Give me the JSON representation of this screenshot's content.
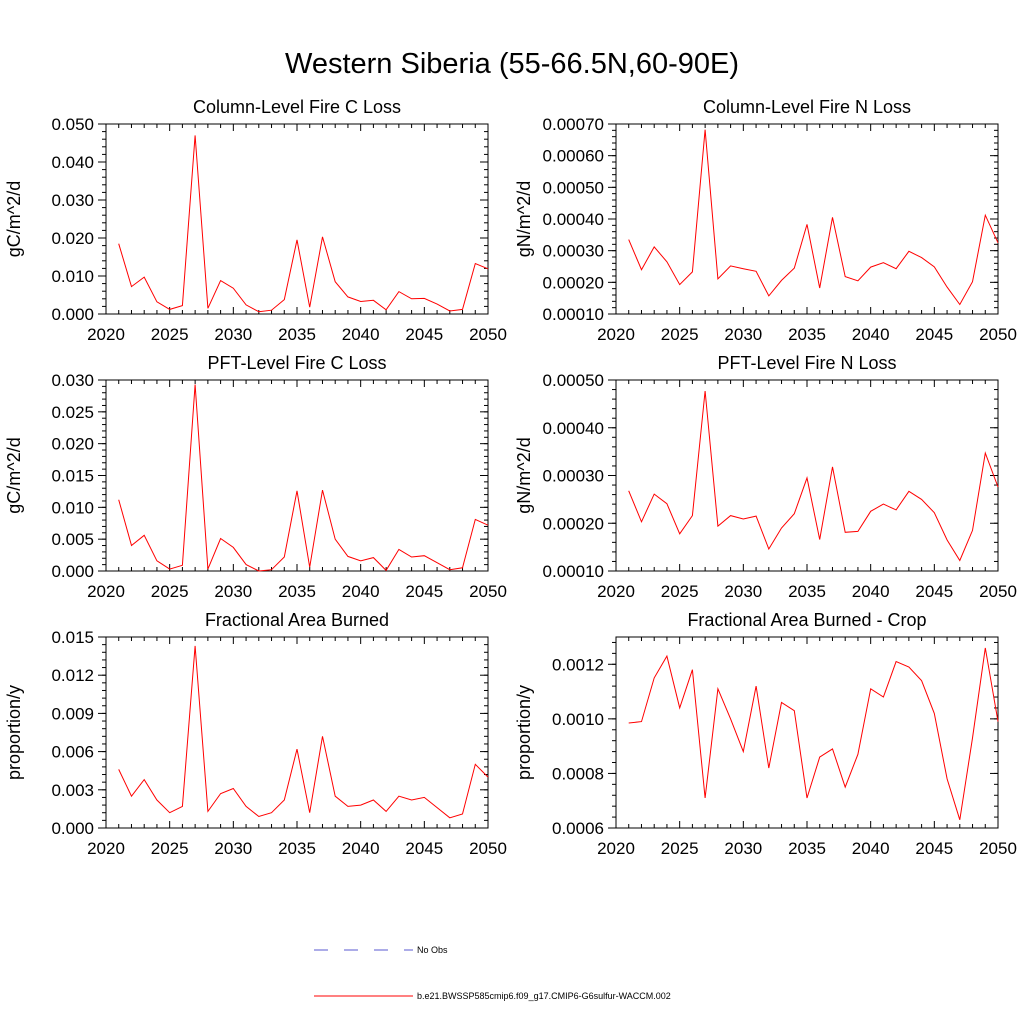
{
  "figure": {
    "title": "Western Siberia (55-66.5N,60-90E)"
  },
  "legend": {
    "entries": [
      {
        "label": "No Obs",
        "color": "#5a5ad0",
        "dash": "dashed"
      },
      {
        "label": "b.e21.BWSSP585cmip6.f09_g17.CMIP6-G6sulfur-WACCM.002",
        "color": "#ff0000",
        "dash": "solid"
      }
    ]
  },
  "chart_data": [
    {
      "type": "line",
      "title": "Column-Level Fire C Loss",
      "ylabel": "gC/m^2/d",
      "xlabel": "",
      "xlim": [
        2020,
        2050
      ],
      "ylim": [
        0,
        0.05
      ],
      "xticks": [
        2020,
        2025,
        2030,
        2035,
        2040,
        2045,
        2050
      ],
      "yticks": [
        0,
        0.01,
        0.02,
        0.03,
        0.04,
        0.05
      ],
      "ytick_labels": [
        "0.000",
        "0.010",
        "0.020",
        "0.030",
        "0.040",
        "0.050"
      ],
      "x": [
        2021,
        2022,
        2023,
        2024,
        2025,
        2026,
        2027,
        2028,
        2029,
        2030,
        2031,
        2032,
        2033,
        2034,
        2035,
        2036,
        2037,
        2038,
        2039,
        2040,
        2041,
        2042,
        2043,
        2044,
        2045,
        2046,
        2047,
        2048,
        2049,
        2050
      ],
      "series": [
        {
          "color": "#ff0000",
          "values": [
            0.0185,
            0.0072,
            0.0097,
            0.0032,
            0.0012,
            0.0022,
            0.047,
            0.0015,
            0.0088,
            0.0068,
            0.0024,
            0.0006,
            0.001,
            0.0038,
            0.0195,
            0.0018,
            0.0203,
            0.0085,
            0.0045,
            0.0033,
            0.0036,
            0.0011,
            0.0059,
            0.004,
            0.0041,
            0.0026,
            0.0008,
            0.0012,
            0.0133,
            0.0119
          ]
        }
      ]
    },
    {
      "type": "line",
      "title": "Column-Level Fire N Loss",
      "ylabel": "gN/m^2/d",
      "xlabel": "",
      "xlim": [
        2020,
        2050
      ],
      "ylim": [
        0.0001,
        0.0007
      ],
      "xticks": [
        2020,
        2025,
        2030,
        2035,
        2040,
        2045,
        2050
      ],
      "yticks": [
        0.0001,
        0.0002,
        0.0003,
        0.0004,
        0.0005,
        0.0006,
        0.0007
      ],
      "ytick_labels": [
        "0.00010",
        "0.00020",
        "0.00030",
        "0.00040",
        "0.00050",
        "0.00060",
        "0.00070"
      ],
      "x": [
        2021,
        2022,
        2023,
        2024,
        2025,
        2026,
        2027,
        2028,
        2029,
        2030,
        2031,
        2032,
        2033,
        2034,
        2035,
        2036,
        2037,
        2038,
        2039,
        2040,
        2041,
        2042,
        2043,
        2044,
        2045,
        2046,
        2047,
        2048,
        2049,
        2050
      ],
      "series": [
        {
          "color": "#ff0000",
          "values": [
            0.000335,
            0.00024,
            0.000312,
            0.000265,
            0.000193,
            0.000233,
            0.000682,
            0.000211,
            0.000252,
            0.000243,
            0.000235,
            0.000157,
            0.000206,
            0.000245,
            0.000383,
            0.000182,
            0.000405,
            0.000218,
            0.000205,
            0.000248,
            0.000262,
            0.000243,
            0.000298,
            0.000278,
            0.000249,
            0.000185,
            0.00013,
            0.000202,
            0.000412,
            0.000325
          ]
        }
      ]
    },
    {
      "type": "line",
      "title": "PFT-Level Fire C Loss",
      "ylabel": "gC/m^2/d",
      "xlabel": "",
      "xlim": [
        2020,
        2050
      ],
      "ylim": [
        0,
        0.03
      ],
      "xticks": [
        2020,
        2025,
        2030,
        2035,
        2040,
        2045,
        2050
      ],
      "yticks": [
        0,
        0.005,
        0.01,
        0.015,
        0.02,
        0.025,
        0.03
      ],
      "ytick_labels": [
        "0.000",
        "0.005",
        "0.010",
        "0.015",
        "0.020",
        "0.025",
        "0.030"
      ],
      "x": [
        2021,
        2022,
        2023,
        2024,
        2025,
        2026,
        2027,
        2028,
        2029,
        2030,
        2031,
        2032,
        2033,
        2034,
        2035,
        2036,
        2037,
        2038,
        2039,
        2040,
        2041,
        2042,
        2043,
        2044,
        2045,
        2046,
        2047,
        2048,
        2049,
        2050
      ],
      "series": [
        {
          "color": "#ff0000",
          "values": [
            0.0112,
            0.004,
            0.0056,
            0.0016,
            0.0003,
            0.0009,
            0.0293,
            0.0003,
            0.0051,
            0.0037,
            0.001,
            0.0,
            0.0002,
            0.0022,
            0.0126,
            0.0006,
            0.0127,
            0.005,
            0.0023,
            0.0016,
            0.0021,
            0.0001,
            0.0034,
            0.0022,
            0.0024,
            0.0013,
            0.0002,
            0.0005,
            0.0081,
            0.0072
          ]
        }
      ]
    },
    {
      "type": "line",
      "title": "PFT-Level Fire N Loss",
      "ylabel": "gN/m^2/d",
      "xlabel": "",
      "xlim": [
        2020,
        2050
      ],
      "ylim": [
        0.0001,
        0.0005
      ],
      "xticks": [
        2020,
        2025,
        2030,
        2035,
        2040,
        2045,
        2050
      ],
      "yticks": [
        0.0001,
        0.0002,
        0.0003,
        0.0004,
        0.0005
      ],
      "ytick_labels": [
        "0.00010",
        "0.00020",
        "0.00030",
        "0.00040",
        "0.00050"
      ],
      "x": [
        2021,
        2022,
        2023,
        2024,
        2025,
        2026,
        2027,
        2028,
        2029,
        2030,
        2031,
        2032,
        2033,
        2034,
        2035,
        2036,
        2037,
        2038,
        2039,
        2040,
        2041,
        2042,
        2043,
        2044,
        2045,
        2046,
        2047,
        2048,
        2049,
        2050
      ],
      "series": [
        {
          "color": "#ff0000",
          "values": [
            0.000268,
            0.000203,
            0.000261,
            0.000241,
            0.000178,
            0.000216,
            0.000477,
            0.000194,
            0.000216,
            0.000209,
            0.000215,
            0.000146,
            0.00019,
            0.00022,
            0.000295,
            0.000166,
            0.000318,
            0.000181,
            0.000183,
            0.000225,
            0.00024,
            0.000228,
            0.000267,
            0.00025,
            0.000222,
            0.000165,
            0.000122,
            0.000185,
            0.000347,
            0.000276
          ]
        }
      ]
    },
    {
      "type": "line",
      "title": "Fractional Area Burned",
      "ylabel": "proportion/y",
      "xlabel": "",
      "xlim": [
        2020,
        2050
      ],
      "ylim": [
        0,
        0.015
      ],
      "xticks": [
        2020,
        2025,
        2030,
        2035,
        2040,
        2045,
        2050
      ],
      "yticks": [
        0,
        0.003,
        0.006,
        0.009,
        0.012,
        0.015
      ],
      "ytick_labels": [
        "0.000",
        "0.003",
        "0.006",
        "0.009",
        "0.012",
        "0.015"
      ],
      "x": [
        2021,
        2022,
        2023,
        2024,
        2025,
        2026,
        2027,
        2028,
        2029,
        2030,
        2031,
        2032,
        2033,
        2034,
        2035,
        2036,
        2037,
        2038,
        2039,
        2040,
        2041,
        2042,
        2043,
        2044,
        2045,
        2046,
        2047,
        2048,
        2049,
        2050
      ],
      "series": [
        {
          "color": "#ff0000",
          "values": [
            0.0046,
            0.0025,
            0.0038,
            0.0022,
            0.0012,
            0.0017,
            0.0143,
            0.0013,
            0.0027,
            0.0031,
            0.0017,
            0.0009,
            0.0012,
            0.0022,
            0.0062,
            0.0012,
            0.0072,
            0.0025,
            0.0017,
            0.0018,
            0.0022,
            0.0013,
            0.0025,
            0.0022,
            0.0024,
            0.0016,
            0.0008,
            0.0011,
            0.005,
            0.004
          ]
        }
      ]
    },
    {
      "type": "line",
      "title": "Fractional Area Burned - Crop",
      "ylabel": "proportion/y",
      "xlabel": "",
      "xlim": [
        2020,
        2050
      ],
      "ylim": [
        0.0006,
        0.0013
      ],
      "xticks": [
        2020,
        2025,
        2030,
        2035,
        2040,
        2045,
        2050
      ],
      "yticks": [
        0.0006,
        0.0008,
        0.001,
        0.0012
      ],
      "ytick_labels": [
        "0.0006",
        "0.0008",
        "0.0010",
        "0.0012"
      ],
      "x": [
        2021,
        2022,
        2023,
        2024,
        2025,
        2026,
        2027,
        2028,
        2029,
        2030,
        2031,
        2032,
        2033,
        2034,
        2035,
        2036,
        2037,
        2038,
        2039,
        2040,
        2041,
        2042,
        2043,
        2044,
        2045,
        2046,
        2047,
        2048,
        2049,
        2050
      ],
      "series": [
        {
          "color": "#ff0000",
          "values": [
            0.000985,
            0.00099,
            0.00115,
            0.00123,
            0.00104,
            0.00118,
            0.00071,
            0.00111,
            0.001,
            0.00088,
            0.00112,
            0.00082,
            0.00106,
            0.00103,
            0.00071,
            0.00086,
            0.00089,
            0.00075,
            0.00087,
            0.00111,
            0.00108,
            0.00121,
            0.00119,
            0.00114,
            0.00102,
            0.00078,
            0.00063,
            0.00093,
            0.00126,
            0.00099
          ]
        }
      ]
    }
  ]
}
